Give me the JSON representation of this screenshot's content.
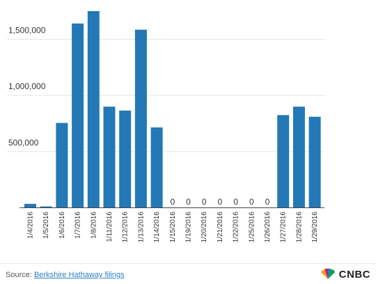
{
  "chart_data": {
    "type": "bar",
    "categories": [
      "1/4/2016",
      "1/5/2016",
      "1/6/2016",
      "1/7/2016",
      "1/8/2016",
      "1/11/2016",
      "1/12/2016",
      "1/13/2016",
      "1/14/2016",
      "1/15/2016",
      "1/19/2016",
      "1/20/2016",
      "1/21/2016",
      "1/22/2016",
      "1/25/2016",
      "1/26/2016",
      "1/27/2016",
      "1/28/2016",
      "1/29/2016"
    ],
    "values": [
      35000,
      12000,
      755000,
      1640000,
      1750000,
      900000,
      865000,
      1585000,
      715000,
      0,
      0,
      0,
      0,
      0,
      0,
      0,
      825000,
      900000,
      810000
    ],
    "zero_labels": [
      "0",
      "0",
      "0",
      "0",
      "0",
      "0",
      "0"
    ],
    "yticks": [
      500000,
      1000000,
      1500000
    ],
    "ytick_labels": [
      "500,000",
      "1,000,000",
      "1,500,000"
    ],
    "ylim": [
      0,
      1750000
    ],
    "bar_color": "#2478b6",
    "grid": true,
    "title": "",
    "xlabel": "",
    "ylabel": ""
  },
  "footer": {
    "source_prefix": "Source: ",
    "source_link": "Berkshire Hathaway filings",
    "logo_text": "CNBC",
    "logo_icon": "peacock-icon"
  }
}
